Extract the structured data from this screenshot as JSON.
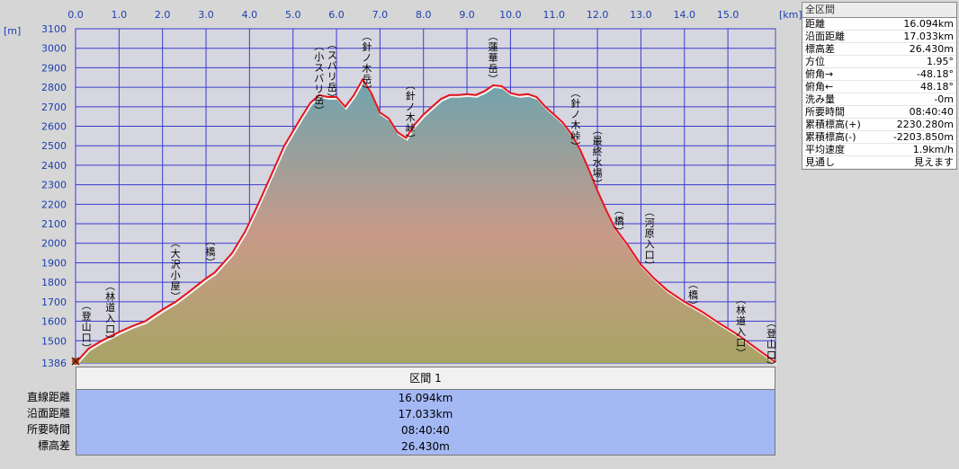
{
  "stats": {
    "header": "全区間",
    "rows": [
      {
        "label": "距離",
        "value": "16.094km"
      },
      {
        "label": "沿面距離",
        "value": "17.033km"
      },
      {
        "label": "標高差",
        "value": "26.430m"
      },
      {
        "label": "方位",
        "value": "1.95°"
      },
      {
        "label": "俯角→",
        "value": "-48.18°"
      },
      {
        "label": "俯角←",
        "value": "48.18°"
      },
      {
        "label": "洗み量",
        "value": "-0m"
      },
      {
        "label": "所要時間",
        "value": "08:40:40"
      },
      {
        "label": "累積標高(+)",
        "value": "2230.280m"
      },
      {
        "label": "累積標高(-)",
        "value": "-2203.850m"
      },
      {
        "label": "平均速度",
        "value": "1.9km/h"
      },
      {
        "label": "見通し",
        "value": "見えます"
      }
    ]
  },
  "section_table": {
    "header": "区間 1",
    "rows": [
      {
        "label": "直線距離",
        "value": "16.094km"
      },
      {
        "label": "沿面距離",
        "value": "17.033km"
      },
      {
        "label": "所要時間",
        "value": "08:40:40"
      },
      {
        "label": "標高差",
        "value": "26.430m"
      }
    ]
  },
  "colors": {
    "profile_line": "#e8141c",
    "grid_line": "#3a3ad0",
    "plot_bg": "#d6d6e0",
    "fill_top": "#6ea0a8",
    "fill_mid": "#c89a88",
    "fill_bottom": "#a8a464"
  },
  "chart_data": {
    "type": "area",
    "x_unit": "[km]",
    "y_unit": "[m]",
    "xlim": [
      0,
      16.094
    ],
    "ylim": [
      1386,
      3100
    ],
    "x_ticks": [
      "0.0",
      "1.0",
      "2.0",
      "3.0",
      "4.0",
      "5.0",
      "6.0",
      "7.0",
      "8.0",
      "9.0",
      "10.0",
      "11.0",
      "12.0",
      "13.0",
      "14.0",
      "15.0"
    ],
    "y_ticks": [
      "1386",
      "1500",
      "1600",
      "1700",
      "1800",
      "1900",
      "2000",
      "2100",
      "2200",
      "2300",
      "2400",
      "2500",
      "2600",
      "2700",
      "2800",
      "2900",
      "3000",
      "3100"
    ],
    "grid": true,
    "series": [
      {
        "x": [
          0,
          0.3,
          0.6,
          1.0,
          1.3,
          1.6,
          1.8,
          2.0,
          2.3,
          2.6,
          3.0,
          3.2,
          3.6,
          3.9,
          4.2,
          4.5,
          4.8,
          5.0,
          5.2,
          5.4,
          5.6,
          5.8,
          6.0,
          6.2,
          6.4,
          6.6,
          6.8,
          7.0,
          7.2,
          7.4,
          7.6,
          7.8,
          8.0,
          8.2,
          8.4,
          8.6,
          8.8,
          9.0,
          9.2,
          9.4,
          9.6,
          9.8,
          10.0,
          10.2,
          10.4,
          10.6,
          10.8,
          11.0,
          11.2,
          11.4,
          11.6,
          11.8,
          12.0,
          12.2,
          12.4,
          12.7,
          13.0,
          13.3,
          13.6,
          14.0,
          14.4,
          14.8,
          15.2,
          15.6,
          16.094
        ],
        "y": [
          1386,
          1460,
          1500,
          1545,
          1575,
          1600,
          1630,
          1660,
          1700,
          1750,
          1820,
          1850,
          1950,
          2060,
          2200,
          2350,
          2500,
          2575,
          2650,
          2720,
          2760,
          2750,
          2750,
          2700,
          2760,
          2840,
          2770,
          2670,
          2640,
          2570,
          2540,
          2610,
          2660,
          2700,
          2740,
          2760,
          2760,
          2765,
          2760,
          2780,
          2810,
          2805,
          2770,
          2760,
          2765,
          2750,
          2700,
          2660,
          2620,
          2560,
          2480,
          2380,
          2270,
          2170,
          2080,
          1990,
          1890,
          1820,
          1760,
          1700,
          1650,
          1590,
          1535,
          1470,
          1390
        ]
      }
    ],
    "annotations": [
      {
        "text": "(登山口)",
        "x": 0.25,
        "y_top": 1710
      },
      {
        "text": "(林道入口)",
        "x": 0.8,
        "y_top": 1810
      },
      {
        "text": "(大沢小屋)",
        "x": 2.3,
        "y_top": 2030
      },
      {
        "text": "(橋)",
        "x": 3.1,
        "y_top": 2040
      },
      {
        "text": "(小スバリ岳)",
        "x": 5.6,
        "y_top": 3040
      },
      {
        "text": "(スバリ岳)",
        "x": 5.9,
        "y_top": 3050
      },
      {
        "text": "(針ノ木岳)",
        "x": 6.7,
        "y_top": 3090
      },
      {
        "text": "(針ノ木峠)",
        "x": 7.7,
        "y_top": 2840
      },
      {
        "text": "(蓮華岳)",
        "x": 9.6,
        "y_top": 3090
      },
      {
        "text": "(針ノ木峠)",
        "x": 11.5,
        "y_top": 2800
      },
      {
        "text": "(最終水場)",
        "x": 12.0,
        "y_top": 2610
      },
      {
        "text": "(橋)",
        "x": 12.5,
        "y_top": 2200
      },
      {
        "text": "(河原入口)",
        "x": 13.2,
        "y_top": 2190
      },
      {
        "text": "(橋)",
        "x": 14.2,
        "y_top": 1820
      },
      {
        "text": "(林道入口)",
        "x": 15.3,
        "y_top": 1740
      },
      {
        "text": "(登山口)",
        "x": 16.0,
        "y_top": 1620
      }
    ]
  }
}
